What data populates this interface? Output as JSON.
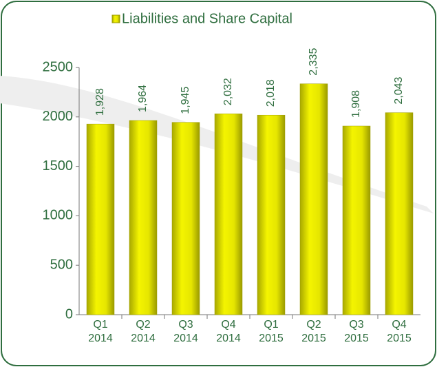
{
  "chart_data": {
    "type": "bar",
    "legend": "Liabilities and Share Capital",
    "categories": [
      "Q1 2014",
      "Q2 2014",
      "Q3 2014",
      "Q4 2014",
      "Q1 2015",
      "Q2 2015",
      "Q3 2015",
      "Q4 2015"
    ],
    "values": [
      1928,
      1964,
      1945,
      2032,
      2018,
      2335,
      1908,
      2043
    ],
    "value_labels": [
      "1,928",
      "1,964",
      "1,945",
      "2,032",
      "2,018",
      "2,335",
      "1,908",
      "2,043"
    ],
    "color": "#e6e600",
    "ylim": [
      0,
      2500
    ],
    "yticks": [
      0,
      500,
      1000,
      1500,
      2000,
      2500
    ],
    "grid": false
  }
}
